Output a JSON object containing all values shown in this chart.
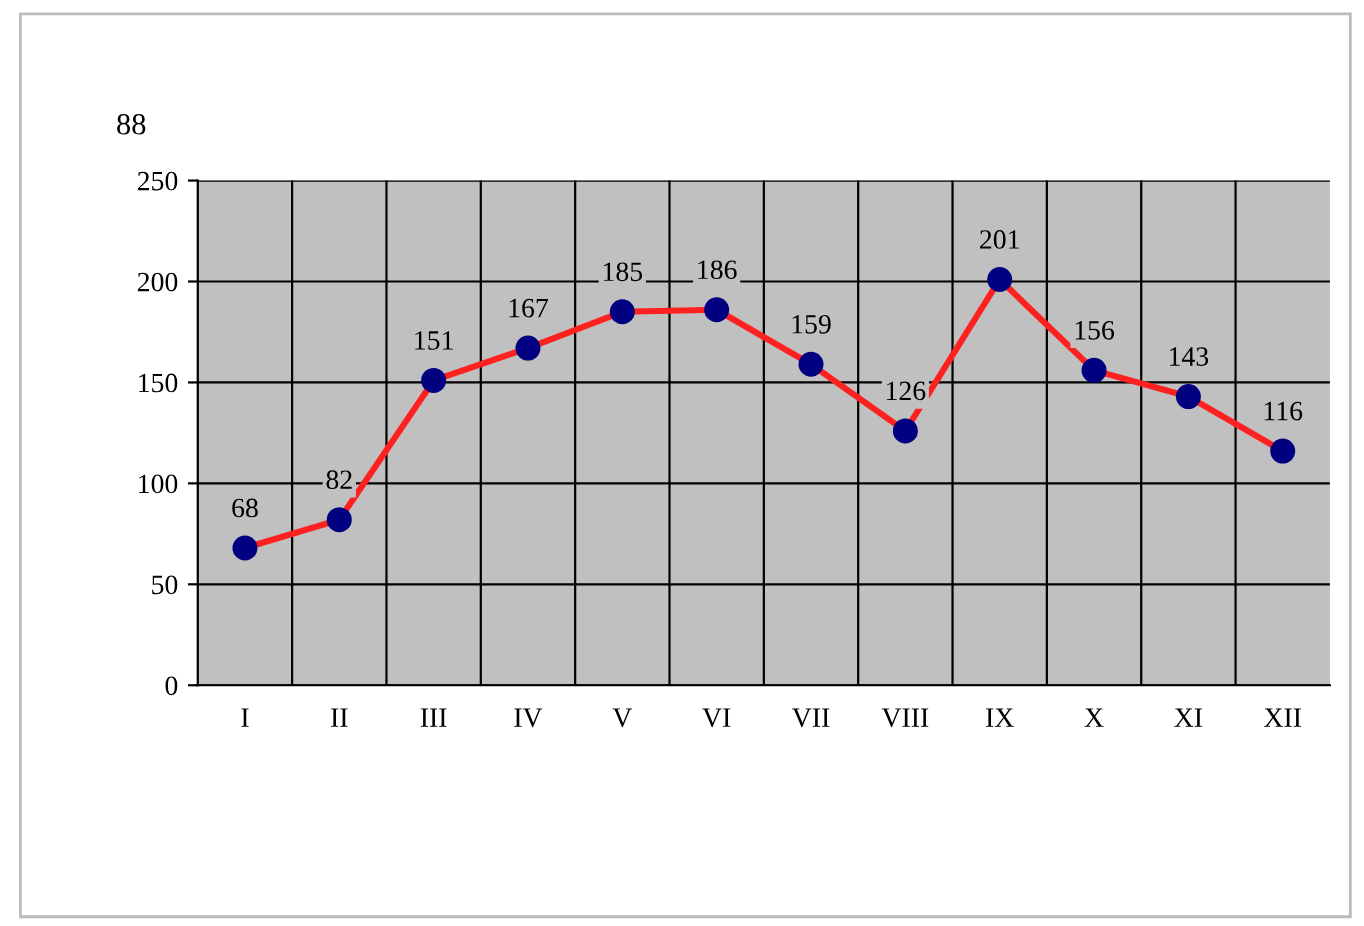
{
  "chart_data": {
    "type": "line",
    "ylabel": "88",
    "categories": [
      "I",
      "II",
      "III",
      "IV",
      "V",
      "VI",
      "VII",
      "VIII",
      "IX",
      "X",
      "XI",
      "XII"
    ],
    "series": [
      {
        "color": "#ff2020",
        "values": [
          68,
          82,
          151,
          167,
          185,
          186,
          159,
          126,
          201,
          156,
          143,
          116
        ]
      }
    ],
    "ylim": [
      0,
      250
    ],
    "yticks": [
      0,
      50,
      100,
      150,
      200,
      250
    ],
    "grid": true,
    "marker": "circle",
    "line_style": "solid",
    "data_labels": true
  }
}
